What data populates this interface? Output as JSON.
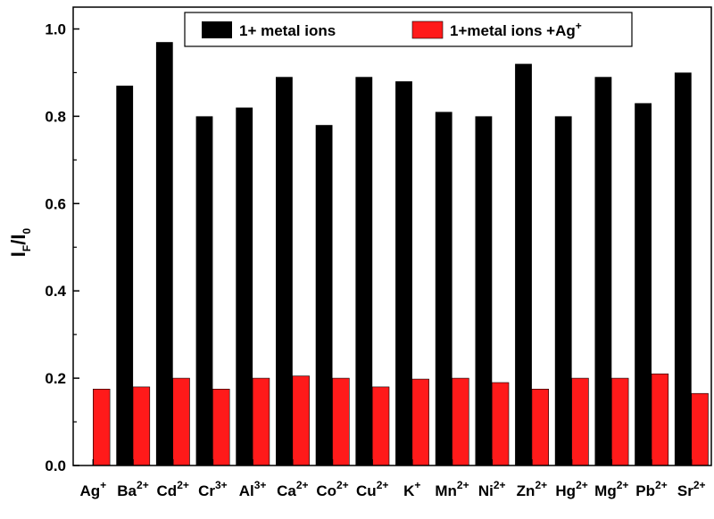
{
  "chart_data": {
    "type": "bar",
    "categories": [
      {
        "base": "Ag",
        "sup": "+"
      },
      {
        "base": "Ba",
        "sup": "2+"
      },
      {
        "base": "Cd",
        "sup": "2+"
      },
      {
        "base": "Cr",
        "sup": "3+"
      },
      {
        "base": "Al",
        "sup": "3+"
      },
      {
        "base": "Ca",
        "sup": "2+"
      },
      {
        "base": "Co",
        "sup": "2+"
      },
      {
        "base": "Cu",
        "sup": "2+"
      },
      {
        "base": "K",
        "sup": "+"
      },
      {
        "base": "Mn",
        "sup": "2+"
      },
      {
        "base": "Ni",
        "sup": "2+"
      },
      {
        "base": "Zn",
        "sup": "2+"
      },
      {
        "base": "Hg",
        "sup": "2+"
      },
      {
        "base": "Mg",
        "sup": "2+"
      },
      {
        "base": "Pb",
        "sup": "2+"
      },
      {
        "base": "Sr",
        "sup": "2+"
      }
    ],
    "series": [
      {
        "name": "1+ metal ions",
        "color": "#000000",
        "values": [
          null,
          0.87,
          0.97,
          0.8,
          0.82,
          0.89,
          0.78,
          0.89,
          0.88,
          0.81,
          0.8,
          0.92,
          0.8,
          0.89,
          0.83,
          0.9
        ]
      },
      {
        "name": "1+metal ions +Ag",
        "name_sup": "+",
        "color": "#ff1a1a",
        "values": [
          0.175,
          0.18,
          0.2,
          0.175,
          0.2,
          0.205,
          0.2,
          0.18,
          0.198,
          0.2,
          0.19,
          0.175,
          0.2,
          0.2,
          0.21,
          0.165
        ]
      }
    ],
    "ylabel": {
      "base": "I",
      "sub1": "F",
      "mid": "/I",
      "sub2": "0"
    },
    "ylim": [
      0.0,
      1.05
    ],
    "yticks": [
      "0.0",
      "0.2",
      "0.4",
      "0.6",
      "0.8",
      "1.0"
    ],
    "ytick_values": [
      0.0,
      0.2,
      0.4,
      0.6,
      0.8,
      1.0
    ],
    "grid": false,
    "legend_position": "top-right"
  }
}
